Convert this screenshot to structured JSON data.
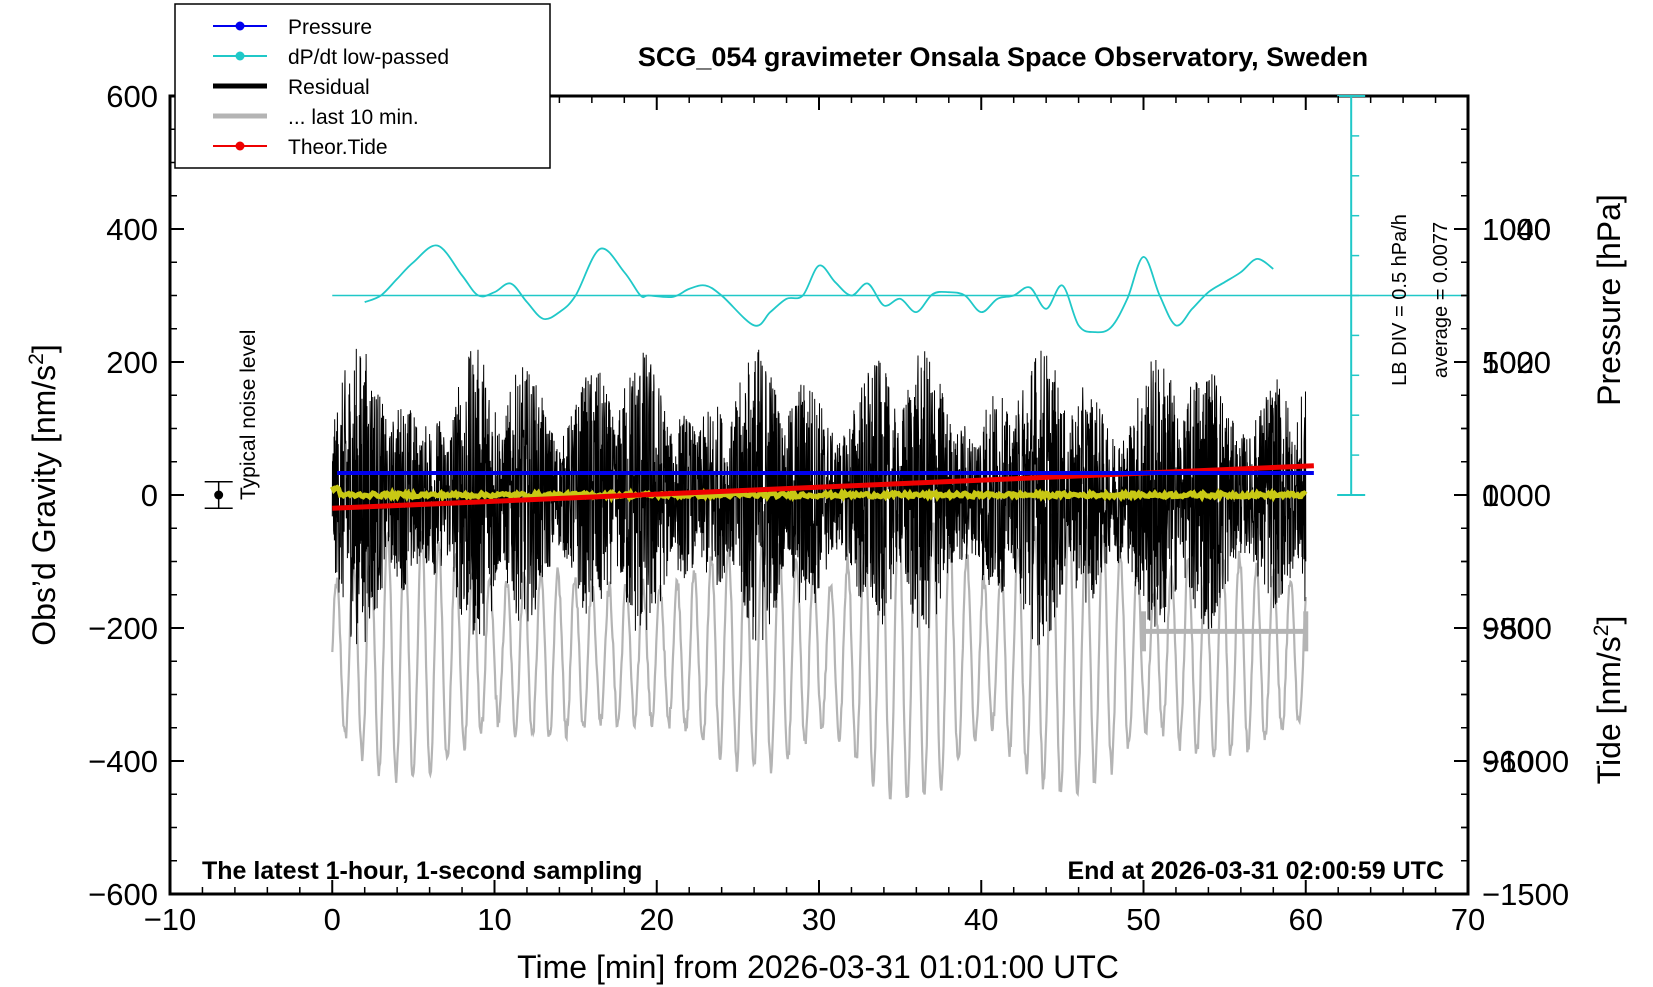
{
  "chart_data": {
    "type": "line",
    "title": "SCG_054 gravimeter Onsala Space Observatory, Sweden",
    "xlabel": "Time [min] from 2026-03-31 01:01:00 UTC",
    "ylabel_base": "Obs’d Gravity [nm/s",
    "ylabel_sup": "2",
    "ylabel_end": "]",
    "xlim": [
      -10,
      70
    ],
    "ylim": [
      -600,
      600
    ],
    "x_ticks": [
      -10,
      0,
      10,
      20,
      30,
      40,
      50,
      60,
      70
    ],
    "x_tick_labels": [
      "−10",
      "0",
      "10",
      "20",
      "30",
      "40",
      "50",
      "60",
      "70"
    ],
    "y_ticks": [
      600,
      400,
      200,
      0,
      -200,
      -400,
      -600
    ],
    "y_tick_labels": [
      "600",
      "400",
      "200",
      "0",
      "−200",
      "−400",
      "−600"
    ],
    "pressure_axis": {
      "label": "Pressure [hPa]",
      "range": [
        940,
        1060
      ],
      "ticks": [
        1040,
        1020,
        1000,
        980,
        960
      ],
      "tick_labels": [
        "1040",
        "1020",
        "1000",
        "980",
        "960"
      ]
    },
    "tide_axis": {
      "label_base": "Tide [nm/s",
      "label_sup": "2",
      "label_end": "]",
      "range": [
        -1500,
        1500
      ],
      "ticks": [
        1000,
        500,
        0,
        -500,
        -1000,
        -1500
      ],
      "tick_labels": [
        "1000",
        "500",
        "0",
        "−500",
        "−1000",
        "−1500"
      ]
    },
    "legend": {
      "position": "top-left",
      "entries": [
        {
          "label": "Pressure",
          "color": "#0000ee",
          "marker": "dot"
        },
        {
          "label": "dP/dt low-passed",
          "color": "#20c8c8",
          "marker": "dot"
        },
        {
          "label": "Residual",
          "color": "#000000",
          "marker": "thick-line"
        },
        {
          "label": "... last 10 min.",
          "color": "#b4b4b4",
          "marker": "thick-line"
        },
        {
          "label": "Theor.Tide",
          "color": "#ee0000",
          "marker": "dot"
        }
      ]
    },
    "annotations": {
      "noise_label": "Typical noise level",
      "noise_point": {
        "x": -7,
        "y": 0,
        "err": 20
      },
      "bottom_left": "The latest 1-hour, 1-second sampling",
      "bottom_right": "End at 2026-03-31 02:00:59 UTC",
      "dpdt_scale": "LB DIV = 0.5 hPa/h",
      "dpdt_average": "average = 0.0077"
    },
    "series": [
      {
        "name": "Pressure",
        "color": "#0000ee",
        "axis": "pressure",
        "x_range": [
          0.3,
          60.5
        ],
        "y_start": 1003.3,
        "y_end": 1003.3
      },
      {
        "name": "dP/dt low-passed",
        "color": "#20c8c8",
        "axis": "gravity",
        "baseline_y": 300,
        "x": [
          2,
          3,
          4,
          5,
          6.5,
          8,
          9,
          10,
          11,
          12,
          13,
          14,
          15,
          16.5,
          18,
          19,
          19.5,
          21,
          22,
          23,
          24,
          26,
          27,
          28,
          29,
          30,
          31,
          32,
          33,
          34,
          35,
          36,
          37,
          38,
          39,
          40,
          41,
          42,
          43,
          44,
          45,
          46,
          47,
          48,
          49,
          50,
          51,
          52,
          53,
          54,
          55,
          56,
          57,
          58
        ],
        "y": [
          290,
          300,
          325,
          350,
          375,
          330,
          300,
          305,
          318,
          290,
          265,
          275,
          300,
          370,
          335,
          300,
          300,
          298,
          310,
          315,
          300,
          255,
          275,
          295,
          300,
          345,
          320,
          300,
          318,
          285,
          295,
          275,
          302,
          305,
          300,
          275,
          295,
          300,
          312,
          280,
          315,
          255,
          245,
          252,
          295,
          358,
          300,
          255,
          280,
          305,
          320,
          335,
          355,
          340
        ]
      },
      {
        "name": "Residual",
        "color": "#000000",
        "axis": "gravity",
        "x_range": [
          0,
          60
        ],
        "envelope": 230
      },
      {
        "name": "Residual smoothed",
        "color": "#c8c814",
        "axis": "gravity",
        "x_range": [
          0,
          60
        ],
        "y": 0
      },
      {
        "name": "... last 10 min.",
        "color": "#b4b4b4",
        "axis": "tide",
        "x_range": [
          0,
          60
        ],
        "center": -600,
        "amplitude": 550
      },
      {
        "name": "Theor.Tide",
        "color": "#ee0000",
        "axis": "tide",
        "x_range": [
          0,
          60.5
        ],
        "y_start": -50,
        "y_end": 110
      }
    ],
    "last_10_min_bracket": {
      "x_start": 50,
      "x_end": 60,
      "y": -205
    }
  }
}
